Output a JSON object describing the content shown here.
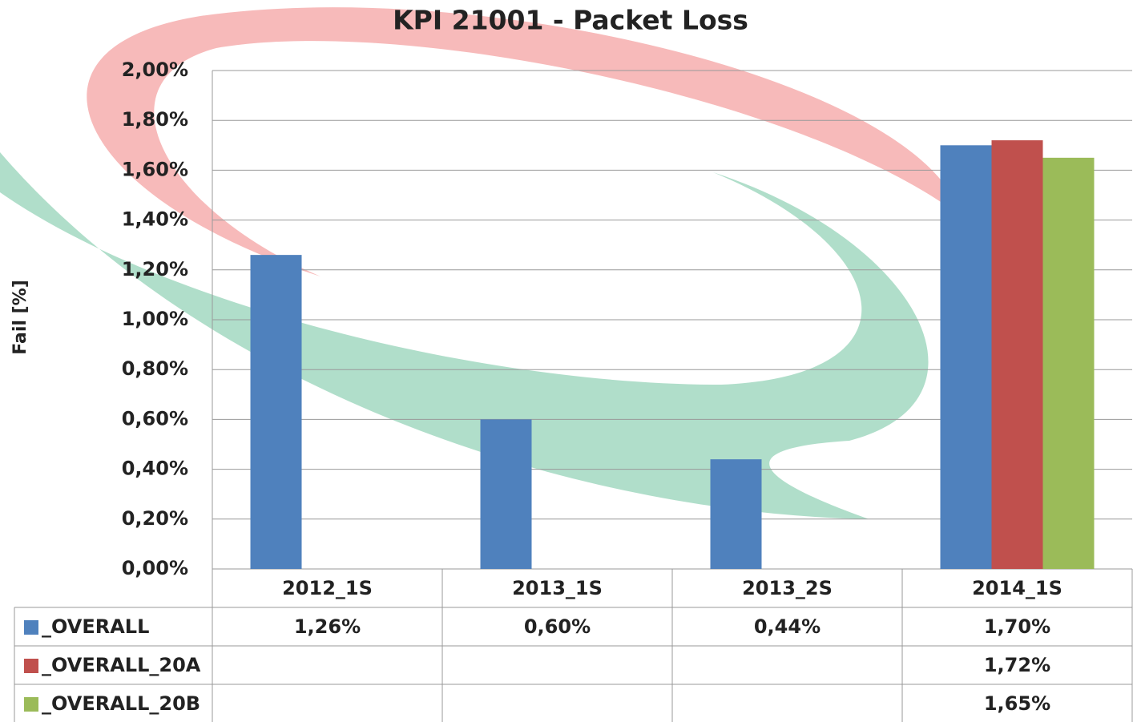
{
  "chart_data": {
    "type": "bar",
    "title": "KPI 21001 - Packet Loss",
    "y_label": "Fail [%]",
    "categories": [
      "2012_1S",
      "2013_1S",
      "2013_2S",
      "2014_1S"
    ],
    "series": [
      {
        "name": "_OVERALL",
        "color": "#4f81bd",
        "values": [
          1.26,
          0.6,
          0.44,
          1.7
        ],
        "value_labels": [
          "1,26%",
          "0,60%",
          "0,44%",
          "1,70%"
        ]
      },
      {
        "name": "_OVERALL_20A",
        "color": "#c0504d",
        "values": [
          null,
          null,
          null,
          1.72
        ],
        "value_labels": [
          null,
          null,
          null,
          "1,72%"
        ]
      },
      {
        "name": "_OVERALL_20B",
        "color": "#9bbb59",
        "values": [
          null,
          null,
          null,
          1.65
        ],
        "value_labels": [
          null,
          null,
          null,
          "1,65%"
        ]
      }
    ],
    "ylim": [
      0,
      2
    ],
    "yticks": [
      {
        "value": 0,
        "label": "0,00%"
      },
      {
        "value": 0.2,
        "label": "0,20%"
      },
      {
        "value": 0.4,
        "label": "0,40%"
      },
      {
        "value": 0.6,
        "label": "0,60%"
      },
      {
        "value": 0.8,
        "label": "0,80%"
      },
      {
        "value": 1.0,
        "label": "1,00%"
      },
      {
        "value": 1.2,
        "label": "1,20%"
      },
      {
        "value": 1.4,
        "label": "1,40%"
      },
      {
        "value": 1.6,
        "label": "1,60%"
      },
      {
        "value": 1.8,
        "label": "1,80%"
      },
      {
        "value": 2.0,
        "label": "2,00%"
      }
    ],
    "grid": true
  }
}
